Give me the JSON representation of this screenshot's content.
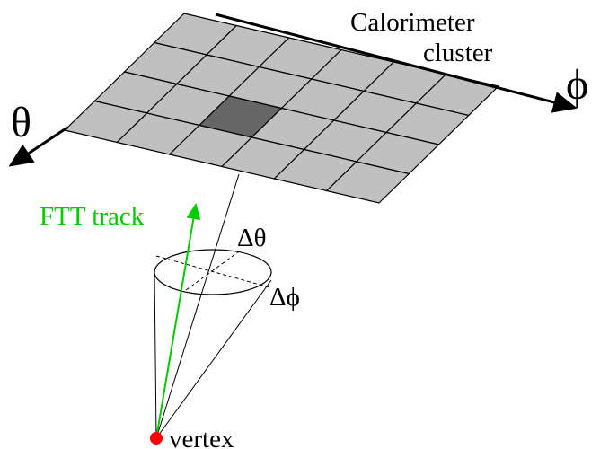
{
  "labels": {
    "calorimeter_line1": "Calorimeter",
    "calorimeter_line2": "cluster",
    "phi": "ϕ",
    "theta": "θ",
    "track": "FTT track",
    "delta_theta": "Δθ",
    "delta_phi": "Δϕ",
    "vertex": "vertex"
  },
  "colors": {
    "cell_fill": "#c0c0c0",
    "hot_cell_fill": "#666666",
    "track": "#00cc00",
    "vertex": "#ff0000",
    "line": "#000000"
  },
  "grid": {
    "rows": 4,
    "cols": 6,
    "hot_cell": {
      "row": 2,
      "col": 2
    }
  }
}
